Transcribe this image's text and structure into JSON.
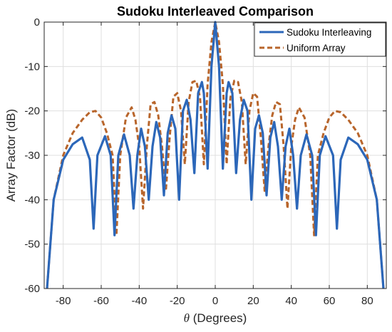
{
  "chart_data": {
    "type": "line",
    "title": "Sudoku Interleaved Comparison",
    "xlabel_symbol": "θ",
    "xlabel_rest": " (Degrees)",
    "ylabel": "Array Factor (dB)",
    "xlim": [
      -90,
      90
    ],
    "ylim": [
      -60,
      0
    ],
    "xticks": [
      -80,
      -60,
      -40,
      -20,
      0,
      20,
      40,
      60,
      80
    ],
    "yticks": [
      0,
      -10,
      -20,
      -30,
      -40,
      -50,
      -60
    ],
    "grid": true,
    "legend_position": "top-right",
    "series": [
      {
        "name": "Sudoku Interleaving",
        "color": "#2c67b9",
        "style": "solid",
        "x": [
          -88.5,
          -85,
          -80,
          -75,
          -70,
          -66,
          -64,
          -62,
          -58,
          -55,
          -53,
          -51,
          -48,
          -45,
          -43,
          -41,
          -39,
          -37,
          -35,
          -33,
          -31,
          -29,
          -27,
          -25,
          -23,
          -21,
          -19,
          -17,
          -15,
          -13,
          -11,
          -9,
          -7,
          -6,
          -4,
          -2,
          0,
          2,
          4,
          6,
          7,
          9,
          11,
          13,
          15,
          17,
          19,
          21,
          23,
          25,
          27,
          29,
          31,
          33,
          35,
          37,
          39,
          41,
          43,
          45,
          48,
          51,
          53,
          55,
          58,
          62,
          64,
          66,
          70,
          75,
          80,
          85,
          88.5
        ],
        "y": [
          -60,
          -40,
          -31,
          -27.5,
          -26,
          -31,
          -46.5,
          -30,
          -25.7,
          -30,
          -48,
          -30,
          -25.3,
          -30,
          -42,
          -30,
          -24,
          -28,
          -40,
          -28,
          -22.5,
          -26,
          -39,
          -25,
          -21,
          -24,
          -40,
          -20,
          -17.5,
          -22,
          -34,
          -16,
          -13.5,
          -16,
          -33,
          -10,
          0,
          -10,
          -33,
          -16,
          -13.5,
          -16,
          -34,
          -22,
          -17.5,
          -20,
          -40,
          -24,
          -21,
          -25,
          -39,
          -26,
          -22.5,
          -28,
          -40,
          -28,
          -24,
          -30,
          -42,
          -30,
          -25.3,
          -30,
          -48,
          -30,
          -25.7,
          -30,
          -46.5,
          -31,
          -26,
          -27.5,
          -31,
          -40,
          -60
        ]
      },
      {
        "name": "Uniform Array",
        "color": "#b8652b",
        "style": "dashed",
        "x": [
          -88.5,
          -85,
          -80,
          -75,
          -70,
          -66,
          -63,
          -60,
          -57,
          -54,
          -52,
          -50,
          -47,
          -44,
          -42,
          -40,
          -38,
          -36,
          -34,
          -32,
          -30,
          -28,
          -26,
          -24,
          -22,
          -20,
          -18,
          -16,
          -14,
          -12,
          -10,
          -8,
          -6,
          -4,
          -2,
          0,
          2,
          4,
          6,
          8,
          10,
          12,
          14,
          16,
          18,
          20,
          22,
          24,
          26,
          28,
          30,
          32,
          34,
          36,
          38,
          40,
          42,
          44,
          47,
          50,
          52,
          54,
          57,
          60,
          63,
          66,
          70,
          75,
          80,
          85,
          88.5
        ],
        "y": [
          -60,
          -40,
          -30,
          -25,
          -22,
          -20.3,
          -20,
          -21.5,
          -25,
          -30,
          -48,
          -30,
          -21.5,
          -19.2,
          -22,
          -28,
          -42,
          -28,
          -18.5,
          -18,
          -21,
          -28,
          -38,
          -26,
          -16.8,
          -16,
          -20,
          -32,
          -18,
          -13.5,
          -13.2,
          -17,
          -32,
          -14,
          -4.5,
          0,
          -4.5,
          -14,
          -32,
          -17,
          -13.2,
          -13.5,
          -18,
          -32,
          -20,
          -16,
          -16.8,
          -26,
          -38,
          -28,
          -21,
          -18,
          -18.5,
          -28,
          -42,
          -28,
          -22,
          -19.2,
          -21.5,
          -30,
          -48,
          -30,
          -25,
          -21.5,
          -20,
          -20.3,
          -22,
          -25,
          -30,
          -40,
          -60
        ]
      }
    ]
  }
}
